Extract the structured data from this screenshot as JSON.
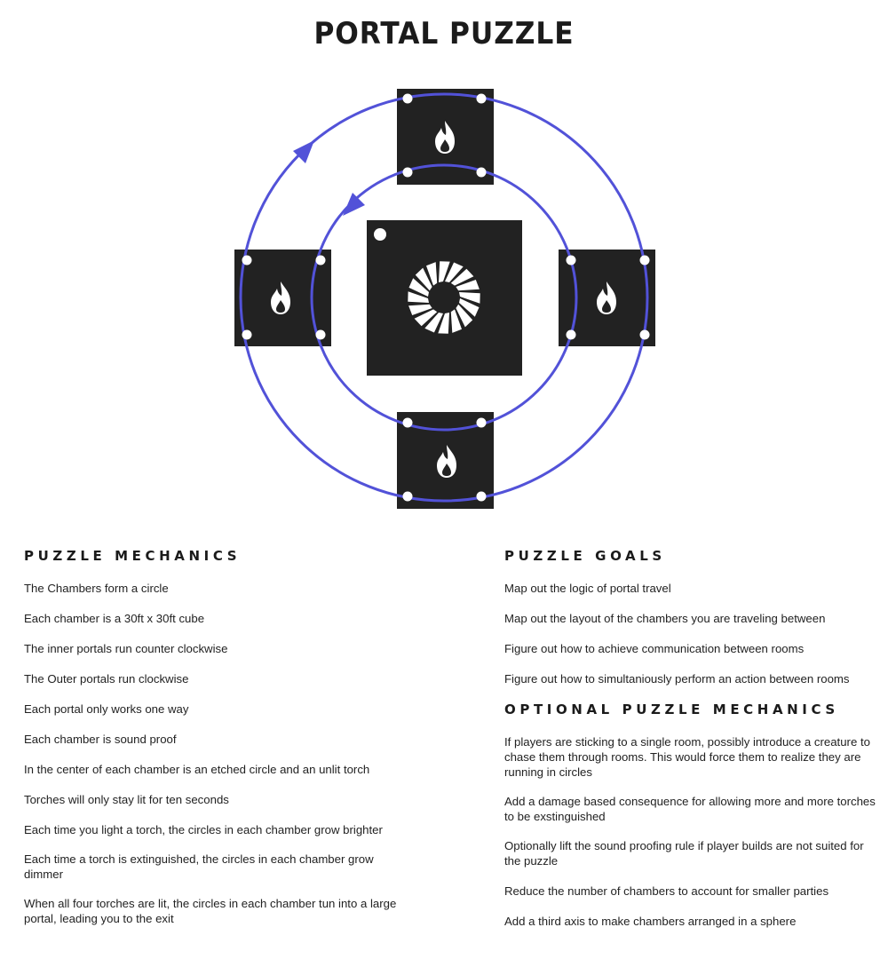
{
  "title": "PORTAL PUZZLE",
  "diagram": {
    "accent_color": "#5252d8",
    "chamber_color": "#222222",
    "chamber_icon": "flame-icon",
    "center_icon": "portal-swirl-icon"
  },
  "mechanics": {
    "heading": "PUZZLE MECHANICS",
    "items": [
      "The Chambers form a circle",
      "Each chamber is a 30ft x 30ft cube",
      "The inner portals run counter clockwise",
      "The Outer portals run clockwise",
      "Each portal only works one way",
      "Each chamber is sound proof",
      "In the center of each chamber is an etched circle and an unlit torch",
      "Torches will only stay lit for ten seconds",
      "Each time you light a torch, the circles in each chamber grow brighter",
      "Each time a torch is extinguished, the circles in each chamber grow dimmer",
      "When all four torches are lit, the circles in each chamber tun into a large portal, leading you to the exit"
    ]
  },
  "goals": {
    "heading": "PUZZLE GOALS",
    "items": [
      "Map out the logic of portal travel",
      "Map out the layout of the chambers you are traveling between",
      "Figure out how to achieve communication between rooms",
      "Figure out how to simultaniously perform an action between rooms"
    ]
  },
  "optional": {
    "heading": "OPTIONAL PUZZLE MECHANICS",
    "items": [
      "If players are sticking to a single room, possibly introduce a creature to chase them through rooms. This would force them to realize they are running in circles",
      "Add a damage based consequence for allowing more and more torches to be exstinguished",
      "Optionally lift the sound proofing rule if player builds are not suited for the puzzle",
      "Reduce the number of chambers to account for smaller parties",
      "Add a third axis to make chambers arranged in a sphere"
    ]
  }
}
